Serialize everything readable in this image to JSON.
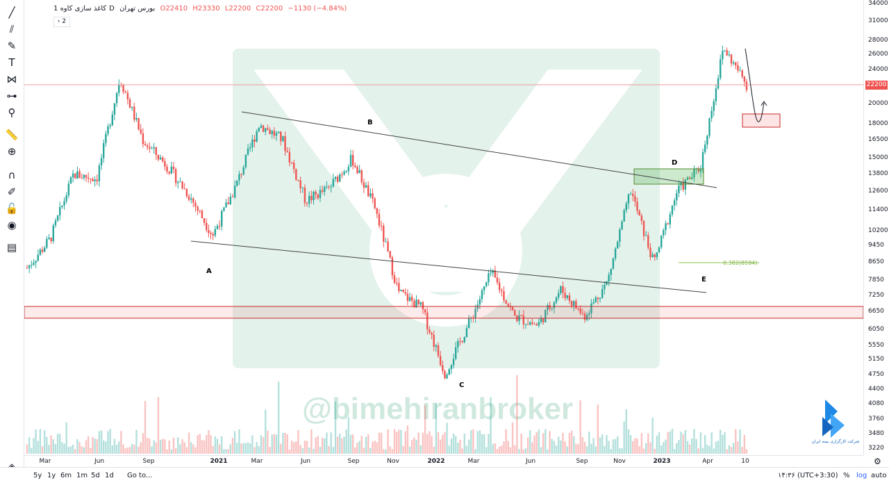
{
  "header": {
    "symbol": "کاغذ سازی کاوه",
    "interval": "1D",
    "exchange": "بورس تهران",
    "open": "O22410",
    "high": "H23330",
    "low": "L22200",
    "close": "C22200",
    "change": "−1130 (−4.84%)",
    "indicators_toggle": "2"
  },
  "last_price_label": "22200",
  "watermark": "@bimehiranbroker",
  "chart_data": {
    "type": "candlestick",
    "price_scale": "log",
    "y_ticks": [
      34000,
      31000,
      28000,
      26000,
      24000,
      22000,
      20000,
      18000,
      16500,
      15000,
      13800,
      12600,
      11400,
      10200,
      9450,
      8650,
      7850,
      7250,
      6650,
      6050,
      5550,
      5150,
      4750,
      4400,
      4080,
      3760,
      3480,
      3220
    ],
    "x_ticks": [
      "Mar",
      "Jun",
      "Sep",
      "2021",
      "Mar",
      "Jun",
      "Sep",
      "Nov",
      "2022",
      "Mar",
      "Jun",
      "Sep",
      "Nov",
      "2023",
      "Apr",
      "10"
    ],
    "x_year_ticks": [
      "2021",
      "2022",
      "2023"
    ],
    "last_price": 22200,
    "price_path": [
      {
        "t": "Feb 2020",
        "price": 8400
      },
      {
        "t": "Mar 2020",
        "price": 9800
      },
      {
        "t": "Apr 2020",
        "price": 13800
      },
      {
        "t": "May 2020",
        "price": 13500
      },
      {
        "t": "Jun 2020",
        "price": 23000
      },
      {
        "t": "Jul 2020",
        "price": 16500
      },
      {
        "t": "Aug 2020",
        "price": 14500
      },
      {
        "t": "Oct 2020",
        "price": 12300
      },
      {
        "t": "Dec 2020",
        "price": 10000
      },
      {
        "t": "Feb 2021",
        "price": 13000
      },
      {
        "t": "Mar 2021",
        "price": 18000
      },
      {
        "t": "May 2021",
        "price": 16600
      },
      {
        "t": "Jun 2021",
        "price": 12000
      },
      {
        "t": "Aug 2021",
        "price": 12800
      },
      {
        "t": "Sep 2021",
        "price": 15000
      },
      {
        "t": "Oct 2021",
        "price": 11500
      },
      {
        "t": "Nov 2021",
        "price": 7400
      },
      {
        "t": "Jan 2022",
        "price": 6800
      },
      {
        "t": "Feb 2022",
        "price": 4800
      },
      {
        "t": "Mar 2022",
        "price": 6200
      },
      {
        "t": "May 2022",
        "price": 8200
      },
      {
        "t": "Jun 2022",
        "price": 6500
      },
      {
        "t": "Aug 2022",
        "price": 6200
      },
      {
        "t": "Sep 2022",
        "price": 7500
      },
      {
        "t": "Nov 2022",
        "price": 6500
      },
      {
        "t": "Dec 2022",
        "price": 7800
      },
      {
        "t": "Jan 2023",
        "price": 12700
      },
      {
        "t": "Feb 2023",
        "price": 8600
      },
      {
        "t": "Mar 2023",
        "price": 12600
      },
      {
        "t": "Apr 2023",
        "price": 14300
      },
      {
        "t": "May 2023",
        "price": 27000
      },
      {
        "t": "Jun 2023",
        "price": 22200
      }
    ],
    "annotations": {
      "wave_labels": [
        "A",
        "B",
        "C",
        "D",
        "E"
      ],
      "fib_label": "0.382(8594)",
      "support_zone": [
        6500,
        6900
      ],
      "reaction_zone_D": [
        13000,
        14100
      ],
      "target_zone": [
        17700,
        19000
      ],
      "resistance_line": 22200
    },
    "colors": {
      "up": "#26a69a",
      "down": "#ef5350",
      "fib": "#8bc34a",
      "watermark": "#2e9e6e"
    }
  },
  "time_ranges": [
    "5y",
    "1y",
    "6m",
    "1m",
    "5d",
    "1d"
  ],
  "goto_label": "Go to...",
  "clock": "۱۴:۳۶ (UTC+3:30)",
  "scale_options": {
    "percent": "%",
    "log": "log",
    "auto": "auto"
  },
  "logo_text": "شرکت کارگزاری بیمه ایران",
  "tools": [
    "crosshair-icon",
    "trendline-icon",
    "fib-icon",
    "brush-icon",
    "text-icon",
    "pattern-icon",
    "measure-icon",
    "zoom-icon",
    "ruler-icon",
    "zoom-in-icon",
    "magnet-icon",
    "lock-drawing-icon",
    "lock-icon",
    "eye-icon",
    "trash-icon",
    "layers-icon"
  ]
}
